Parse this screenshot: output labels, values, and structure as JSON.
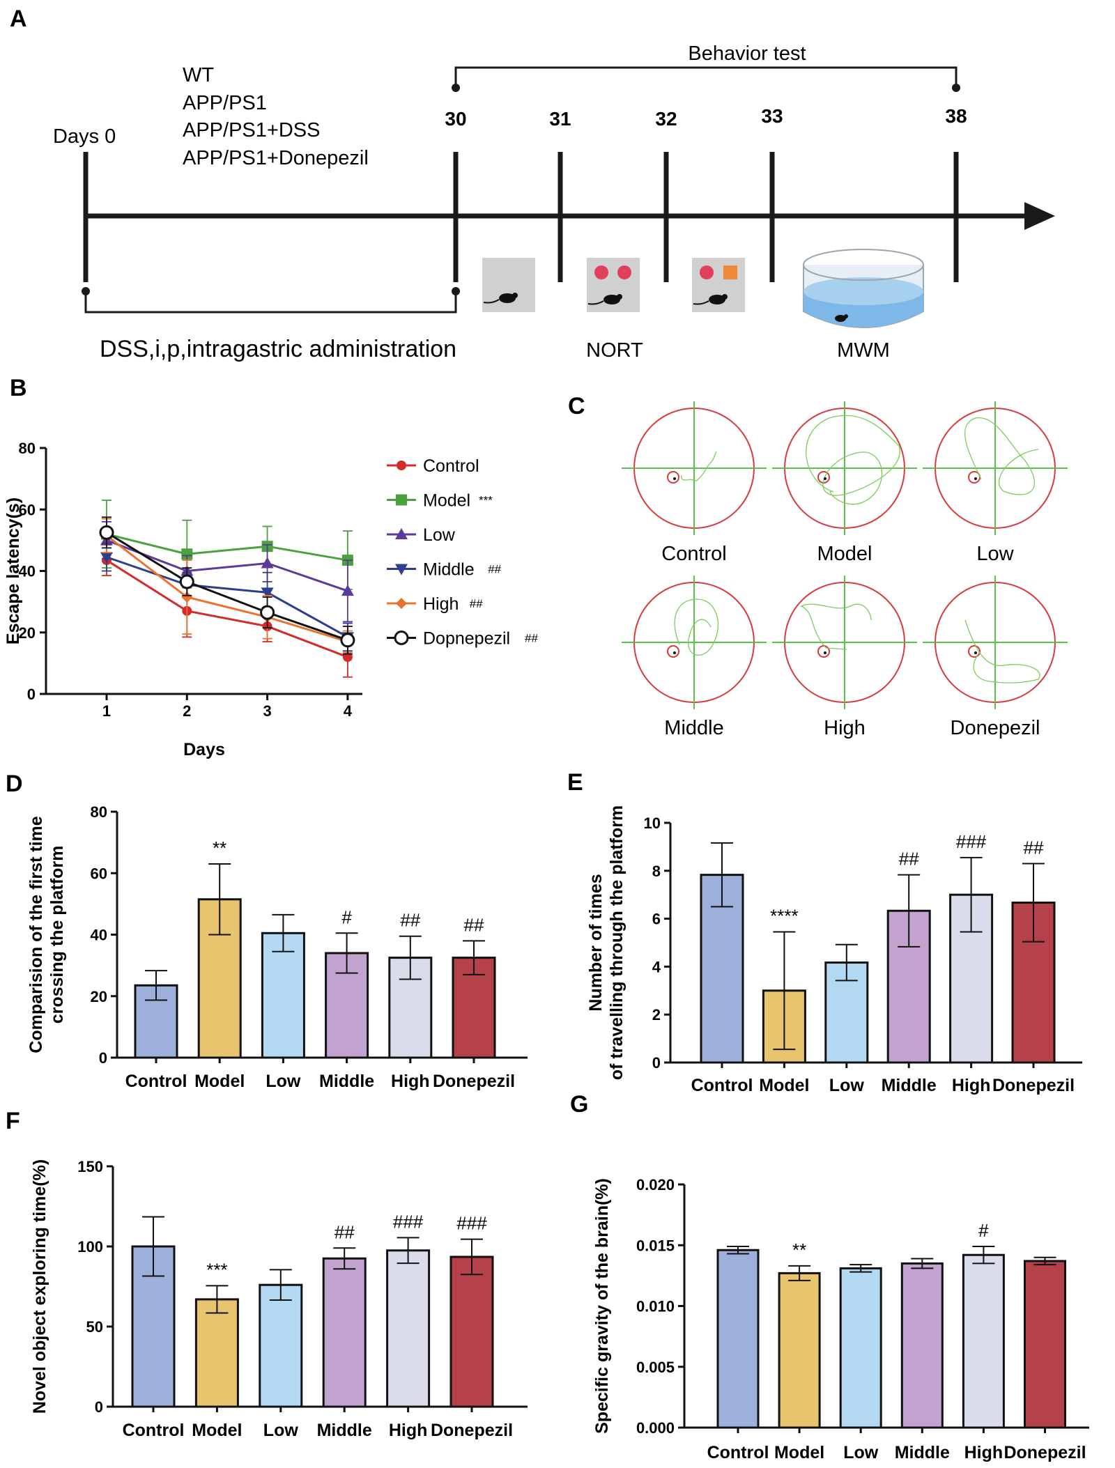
{
  "panels": {
    "A": "A",
    "B": "B",
    "C": "C",
    "D": "D",
    "E": "E",
    "F": "F",
    "G": "G"
  },
  "timeline": {
    "groups": [
      "WT",
      "APP/PS1",
      "APP/PS1+DSS",
      "APP/PS1+Donepezil"
    ],
    "start_label": "Days 0",
    "days": [
      "30",
      "31",
      "32",
      "33",
      "38"
    ],
    "behavior_label": "Behavior test",
    "admin_label": "DSS,i,p,intragastric administration",
    "nort_label": "NORT",
    "mwm_label": "MWM",
    "colors": {
      "red_object": "#e0405a",
      "orange_object": "#f08a3a",
      "water": "#7db8e8"
    }
  },
  "swim_paths": {
    "labels": [
      "Control",
      "Model",
      "Low",
      "Middle",
      "High",
      "Donepezil"
    ],
    "colors": {
      "circle": "#d63a3a",
      "axes": "#5cc04a",
      "path": "#7ccc5c"
    },
    "icons": [
      "pool-track-icon"
    ]
  },
  "chart_data": [
    {
      "panel": "B",
      "type": "line",
      "x": [
        1,
        2,
        3,
        4
      ],
      "xlabel": "Days",
      "ylabel": "Escape  latency(s)",
      "ylim": [
        0,
        80
      ],
      "yticks": [
        "0",
        "20",
        "40",
        "60",
        "80"
      ],
      "xticks": [
        "1",
        "2",
        "3",
        "4"
      ],
      "series": [
        {
          "name": "Control",
          "sig": "",
          "color": "#d42a2a",
          "marker": "circle",
          "values": [
            43.5,
            27,
            22,
            12
          ],
          "err": [
            5,
            8.5,
            5,
            6.5
          ]
        },
        {
          "name": "Model",
          "sig": "***",
          "color": "#4aa13e",
          "marker": "square",
          "values": [
            52,
            45.5,
            48,
            43.5
          ],
          "err": [
            11,
            11,
            6.5,
            9.5
          ]
        },
        {
          "name": "Low",
          "sig": "",
          "color": "#5b3a9a",
          "marker": "triangle-up",
          "values": [
            50,
            40,
            42.5,
            33.5
          ],
          "err": [
            6,
            5,
            6,
            10
          ]
        },
        {
          "name": "Middle",
          "sig": "##",
          "color": "#2c3e8c",
          "marker": "triangle-down",
          "values": [
            44.5,
            35.5,
            33,
            18.5
          ],
          "err": [
            4.5,
            4,
            6.5,
            4.5
          ]
        },
        {
          "name": "High",
          "sig": "##",
          "color": "#e8742e",
          "marker": "diamond",
          "values": [
            51.5,
            31.5,
            25,
            17
          ],
          "err": [
            5.5,
            12,
            7,
            3.5
          ]
        },
        {
          "name": "Dopnepezil",
          "sig": "##",
          "color": "#111111",
          "marker": "open-circle",
          "values": [
            52.5,
            36.5,
            26.5,
            17.5
          ],
          "err": [
            5,
            4.5,
            5,
            4.5
          ]
        }
      ]
    },
    {
      "panel": "D",
      "type": "bar",
      "categories": [
        "Control",
        "Model",
        "Low",
        "Middle",
        "High",
        "Donepezil"
      ],
      "values": [
        23.5,
        51.5,
        40.5,
        34,
        32.5,
        32.5
      ],
      "err": [
        4.8,
        11.5,
        6,
        6.5,
        7,
        5.5
      ],
      "sig": [
        "",
        "**",
        "",
        "#",
        "##",
        "##"
      ],
      "ylabel": [
        "Comparision of the first time",
        "crossing the platform"
      ],
      "ylim": [
        0,
        80
      ],
      "yticks": [
        "0",
        "20",
        "40",
        "60",
        "80"
      ]
    },
    {
      "panel": "E",
      "type": "bar",
      "categories": [
        "Control",
        "Model",
        "Low",
        "Middle",
        "High",
        "Donepezil"
      ],
      "values": [
        7.83,
        3.0,
        4.17,
        6.33,
        7.0,
        6.67
      ],
      "err": [
        1.33,
        2.45,
        0.75,
        1.5,
        1.55,
        1.63
      ],
      "sig": [
        "",
        "****",
        "",
        "##",
        "###",
        "##"
      ],
      "ylabel": [
        "Number of times",
        "of travelling through the platform"
      ],
      "ylim": [
        0,
        10
      ],
      "yticks": [
        "0",
        "2",
        "4",
        "6",
        "8",
        "10"
      ]
    },
    {
      "panel": "F",
      "type": "bar",
      "categories": [
        "Control",
        "Model",
        "Low",
        "Middle",
        "High",
        "Donepezil"
      ],
      "values": [
        100,
        67,
        76,
        92.5,
        97.5,
        93.5
      ],
      "err": [
        18.5,
        8.5,
        9.5,
        6.5,
        8,
        11
      ],
      "sig": [
        "",
        "***",
        "",
        "##",
        "###",
        "###"
      ],
      "ylabel": [
        "Novel object exploring time(%)"
      ],
      "ylim": [
        0,
        150
      ],
      "yticks": [
        "0",
        "50",
        "100",
        "150"
      ]
    },
    {
      "panel": "G",
      "type": "bar",
      "categories": [
        "Control",
        "Model",
        "Low",
        "Middle",
        "High",
        "Donepezil"
      ],
      "values": [
        0.0146,
        0.0127,
        0.0131,
        0.0135,
        0.0142,
        0.0137
      ],
      "err": [
        0.0003,
        0.0006,
        0.0003,
        0.0004,
        0.0007,
        0.0003
      ],
      "sig": [
        "",
        "**",
        "",
        "",
        "#",
        ""
      ],
      "ylabel": [
        "Specific gravity of the brain(%)"
      ],
      "ylim": [
        0,
        0.02
      ],
      "yticks": [
        "0.000",
        "0.005",
        "0.010",
        "0.015",
        "0.020"
      ]
    }
  ],
  "bar_colors": [
    "#9db0db",
    "#e8c46e",
    "#b3d8f2",
    "#c2a3cf",
    "#d9dcea",
    "#b5414a"
  ]
}
